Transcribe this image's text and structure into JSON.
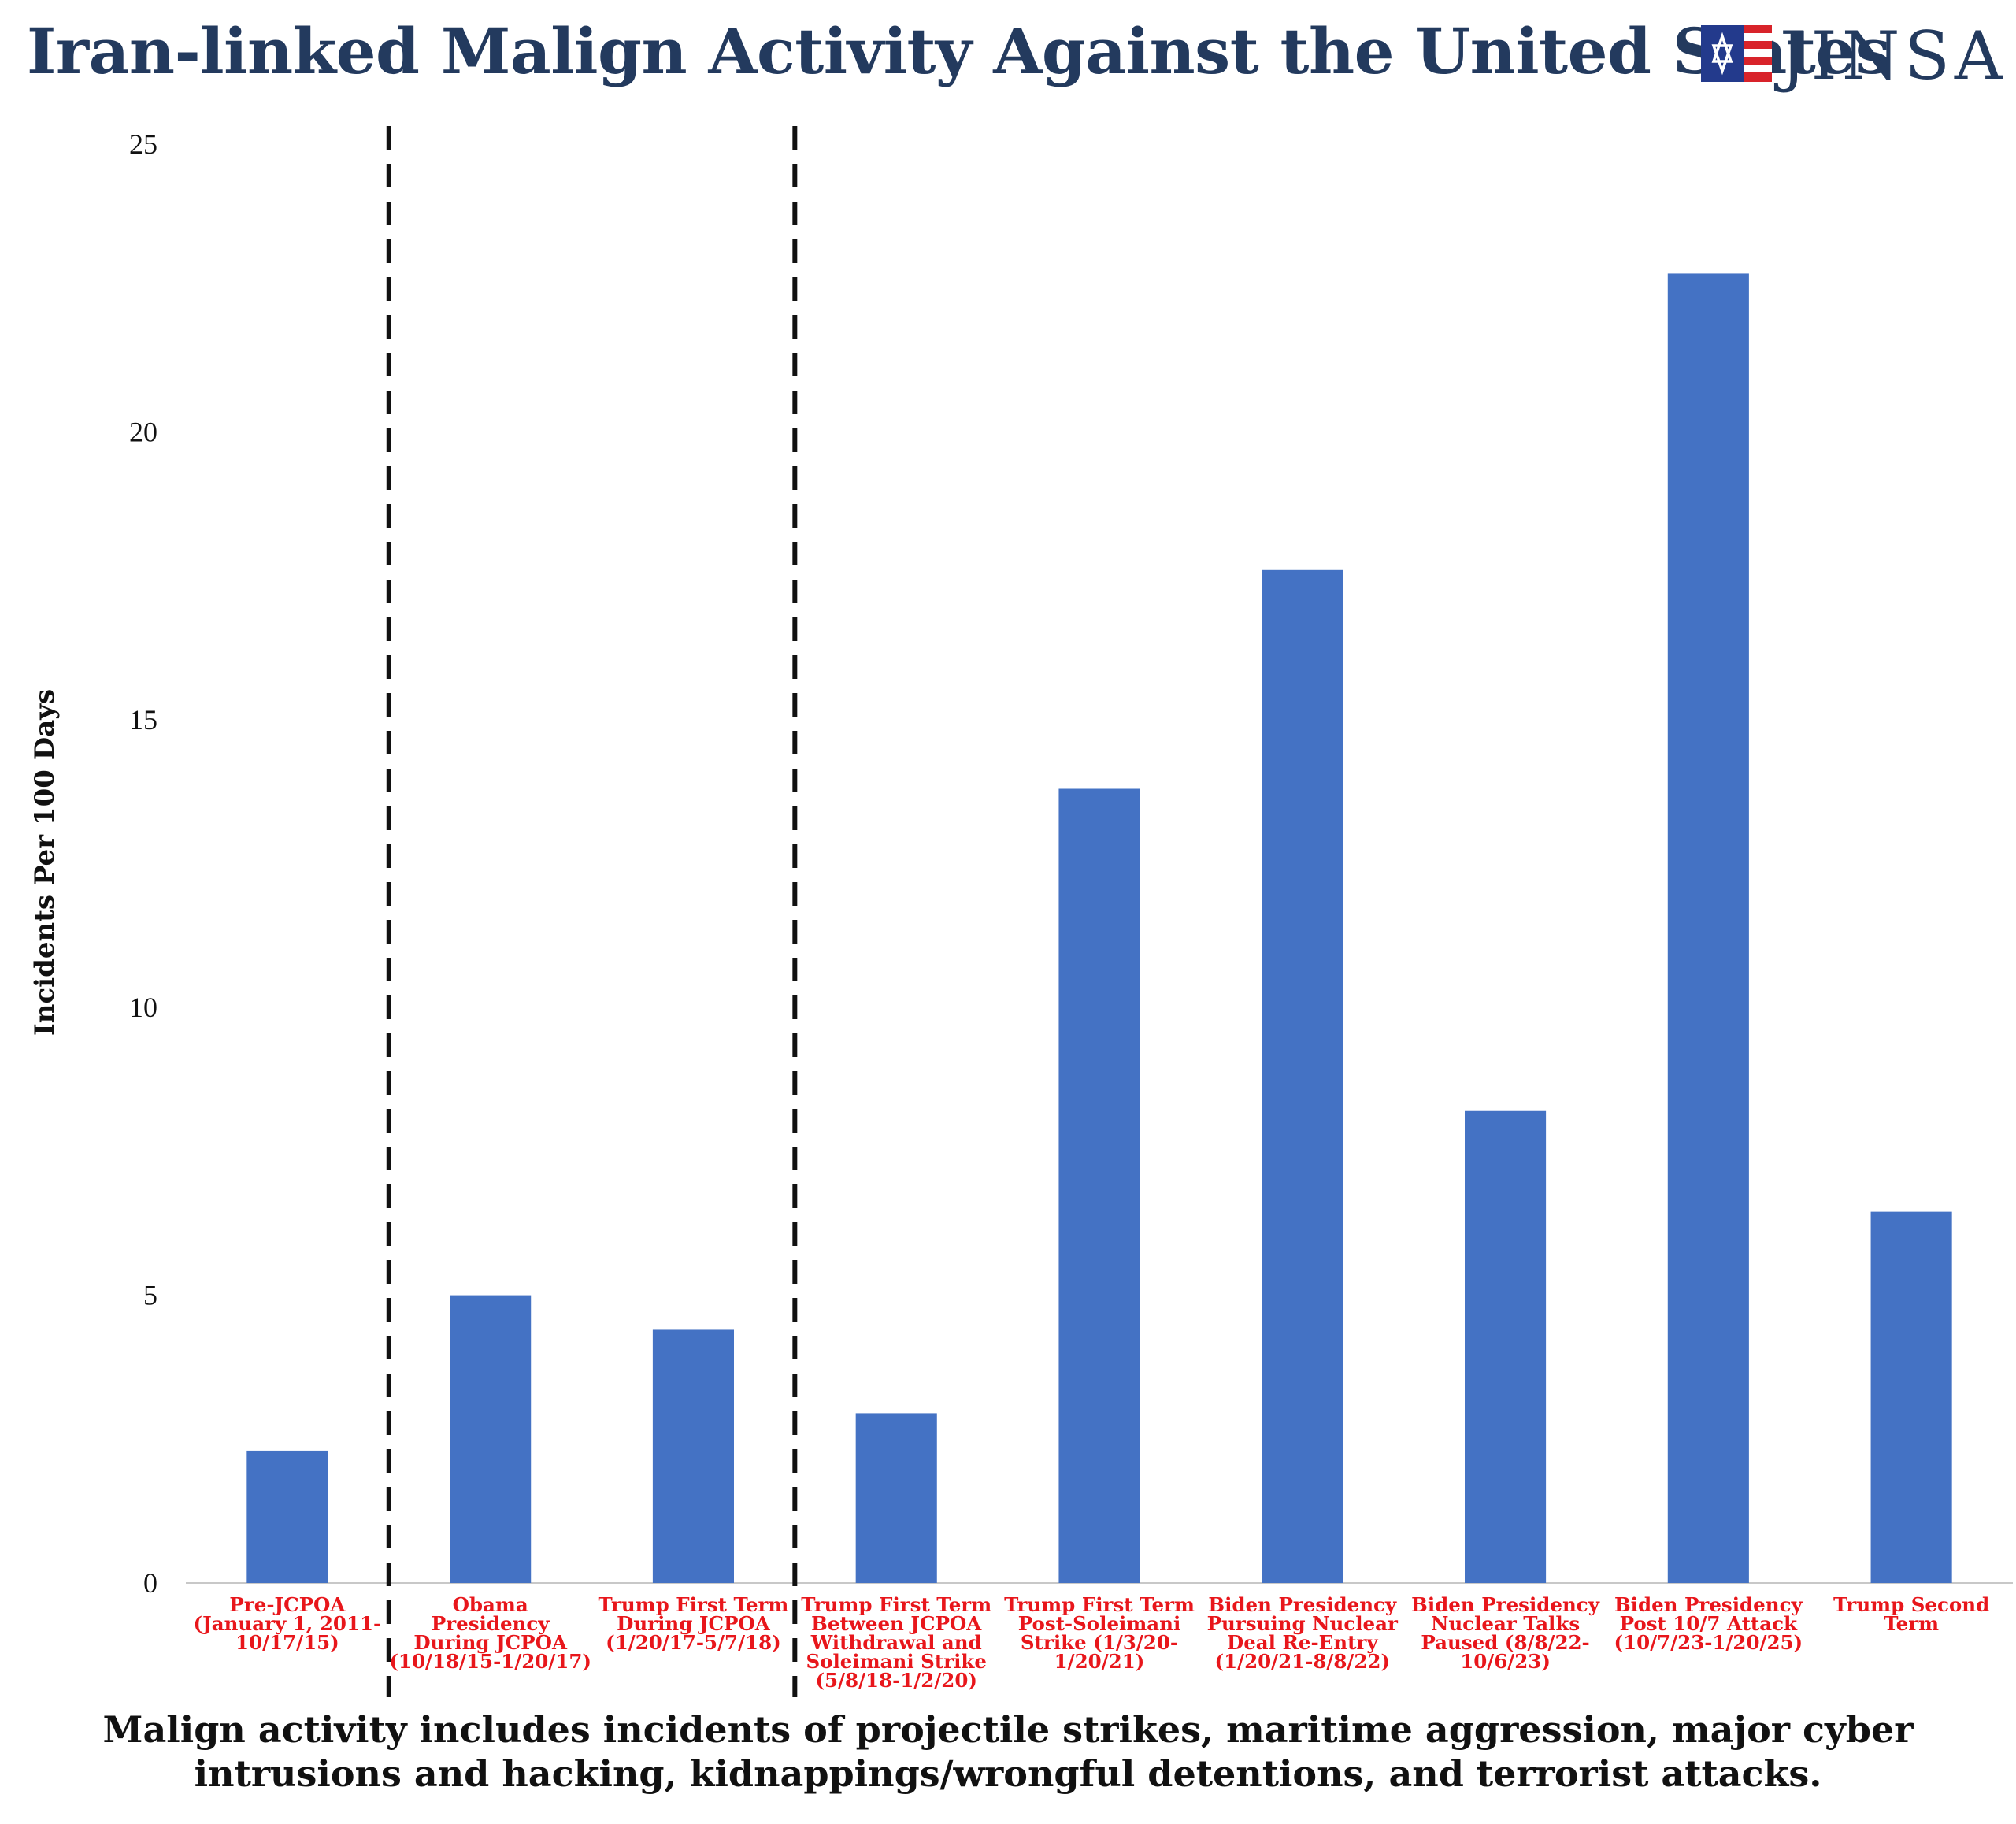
{
  "title": "Iran-linked Malign Activity Against the United States",
  "logo": {
    "text": "JINSA",
    "flag_colors": {
      "blue": "#233a8c",
      "red": "#d8232a"
    }
  },
  "colors": {
    "bar": "#4472c4",
    "category_label": "#e8161b",
    "title": "#233a5e"
  },
  "chart_data": {
    "type": "bar",
    "title": "Iran-linked Malign Activity Against the United States",
    "xlabel": "",
    "ylabel": "Incidents Per 100 Days",
    "ylim": [
      0,
      25
    ],
    "yticks": [
      "0",
      "5",
      "10",
      "15",
      "20",
      "25"
    ],
    "grid": false,
    "categories": [
      [
        "Pre-JCPOA",
        "(January 1, 2011-",
        "10/17/15)"
      ],
      [
        "Obama",
        "Presidency",
        "During JCPOA",
        "(10/18/15-1/20/17)"
      ],
      [
        "Trump First Term",
        "During JCPOA",
        "(1/20/17-5/7/18)"
      ],
      [
        "Trump First Term",
        "Between JCPOA",
        "Withdrawal and",
        "Soleimani Strike",
        "(5/8/18-1/2/20)"
      ],
      [
        "Trump First Term",
        "Post-Soleimani",
        "Strike (1/3/20-",
        "1/20/21)"
      ],
      [
        "Biden Presidency",
        "Pursuing Nuclear",
        "Deal Re-Entry",
        "(1/20/21-8/8/22)"
      ],
      [
        "Biden Presidency",
        "Nuclear Talks",
        "Paused (8/8/22-",
        "10/6/23)"
      ],
      [
        "Biden Presidency",
        "Post 10/7 Attack",
        "(10/7/23-1/20/25)"
      ],
      [
        "Trump Second",
        "Term"
      ]
    ],
    "values": [
      2.3,
      5.0,
      4.4,
      2.95,
      13.8,
      17.6,
      8.2,
      22.75,
      6.45
    ],
    "dividers_after_category_index": [
      0,
      2
    ]
  },
  "caption": [
    "Malign activity includes incidents of projectile strikes, maritime aggression, major cyber",
    "intrusions and hacking, kidnappings/wrongful detentions, and terrorist attacks."
  ]
}
